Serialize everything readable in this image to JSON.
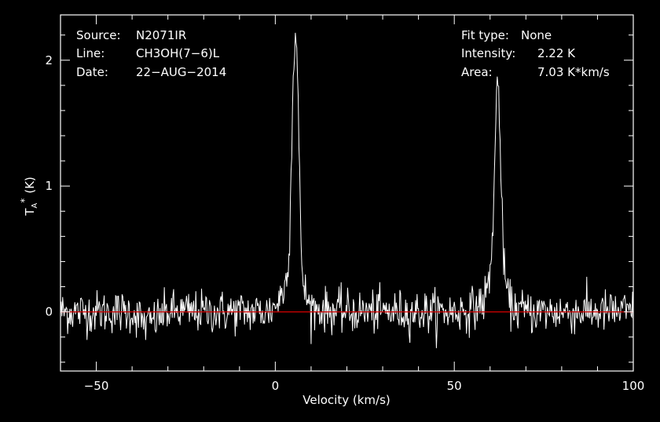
{
  "chart_data": {
    "type": "line",
    "xlabel": "Velocity (km/s)",
    "ylabel": "T",
    "ylabel_sub": "A",
    "ylabel_sup": "*",
    "ylabel_unit": "(K)",
    "xlim": [
      -60,
      100
    ],
    "ylim": [
      -0.47,
      2.36
    ],
    "x_ticks": [
      -50,
      0,
      50,
      100
    ],
    "y_ticks": [
      0,
      1,
      2
    ],
    "grid": false,
    "colors": {
      "background": "#000000",
      "frame": "#ffffff",
      "spectrum": "#ffffff",
      "baseline": "#d40000"
    },
    "baseline_value": 0,
    "series": [
      {
        "x": [
          -60,
          -50,
          -40,
          -36,
          -30,
          -20,
          -10,
          -2,
          0,
          2,
          3,
          4,
          4.5,
          5,
          5.5,
          6,
          6.5,
          7,
          7.5,
          8,
          9,
          10,
          12,
          20,
          30,
          40,
          50,
          55,
          58,
          59,
          60,
          60.5,
          61,
          61.5,
          62,
          62.5,
          63,
          63.5,
          64,
          64.5,
          65,
          66,
          68,
          70,
          80,
          90,
          100
        ],
        "y": [
          0,
          0,
          0,
          -0.1,
          0,
          0,
          0,
          0,
          0.05,
          0.15,
          0.25,
          0.6,
          1.2,
          1.9,
          2.2,
          2.1,
          1.5,
          0.7,
          0.35,
          0.2,
          0.08,
          0.04,
          0.02,
          0,
          0,
          0,
          0,
          0.02,
          0.08,
          0.15,
          0.3,
          0.5,
          0.9,
          1.4,
          1.83,
          1.75,
          1.1,
          0.6,
          0.35,
          0.2,
          0.1,
          0.05,
          0.02,
          0,
          0,
          0,
          0
        ]
      }
    ],
    "noise_rms": 0.085,
    "info_panel": {
      "source_label": "Source:",
      "source_value": "N2071IR",
      "line_label": "Line:",
      "line_value": "CH3OH(7−6)L",
      "date_label": "Date:",
      "date_value": "22−AUG−2014",
      "fit_label": "Fit type:",
      "fit_value": "None",
      "intensity_label": "Intensity:",
      "intensity_value": "2.22 K",
      "area_label": "Area:",
      "area_value": "7.03 K*km/s"
    }
  }
}
